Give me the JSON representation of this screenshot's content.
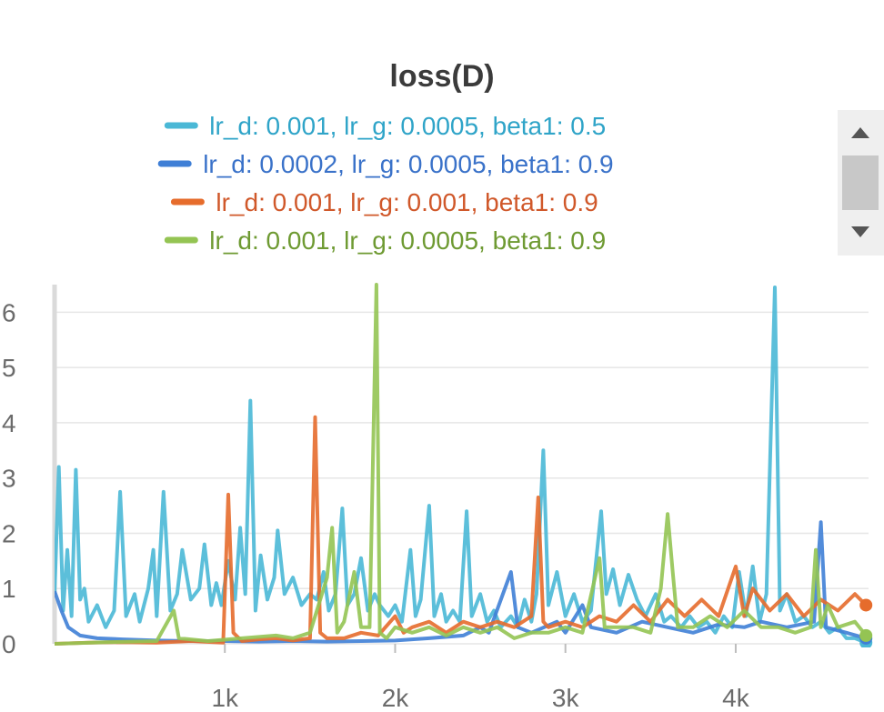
{
  "chart_data": {
    "type": "line",
    "title": "loss(D)",
    "xlabel": "",
    "ylabel": "",
    "xlim": [
      0,
      4780
    ],
    "ylim": [
      0,
      6.5
    ],
    "x_ticks": [
      {
        "value": 1000,
        "label": "1k"
      },
      {
        "value": 2000,
        "label": "2k"
      },
      {
        "value": 3000,
        "label": "3k"
      },
      {
        "value": 4000,
        "label": "4k"
      }
    ],
    "y_ticks": [
      {
        "value": 0,
        "label": "0"
      },
      {
        "value": 1,
        "label": "1"
      },
      {
        "value": 2,
        "label": "2"
      },
      {
        "value": 3,
        "label": "3"
      },
      {
        "value": 4,
        "label": "4"
      },
      {
        "value": 5,
        "label": "5"
      },
      {
        "value": 6,
        "label": "6"
      }
    ],
    "grid": true,
    "legend_position": "top",
    "series": [
      {
        "name": "lr_d: 0.001, lr_g: 0.0005, beta1: 0.5",
        "color": "#4ab8d6",
        "text_color": "#2fa4c8",
        "points": [
          [
            0,
            0.9
          ],
          [
            25,
            3.2
          ],
          [
            50,
            0.6
          ],
          [
            75,
            1.7
          ],
          [
            100,
            0.5
          ],
          [
            125,
            3.15
          ],
          [
            150,
            0.8
          ],
          [
            175,
            1.0
          ],
          [
            200,
            0.4
          ],
          [
            250,
            0.7
          ],
          [
            300,
            0.3
          ],
          [
            350,
            0.6
          ],
          [
            385,
            2.75
          ],
          [
            420,
            0.5
          ],
          [
            470,
            0.9
          ],
          [
            500,
            0.4
          ],
          [
            550,
            1.0
          ],
          [
            580,
            1.7
          ],
          [
            600,
            0.5
          ],
          [
            640,
            2.75
          ],
          [
            680,
            0.6
          ],
          [
            720,
            0.9
          ],
          [
            750,
            1.7
          ],
          [
            800,
            0.8
          ],
          [
            850,
            1.0
          ],
          [
            880,
            1.8
          ],
          [
            920,
            0.7
          ],
          [
            950,
            1.1
          ],
          [
            980,
            0.7
          ],
          [
            1020,
            1.5
          ],
          [
            1060,
            0.8
          ],
          [
            1090,
            2.1
          ],
          [
            1120,
            0.9
          ],
          [
            1150,
            4.4
          ],
          [
            1180,
            0.6
          ],
          [
            1210,
            1.6
          ],
          [
            1250,
            0.8
          ],
          [
            1290,
            1.2
          ],
          [
            1310,
            2.05
          ],
          [
            1350,
            0.9
          ],
          [
            1400,
            1.2
          ],
          [
            1450,
            0.7
          ],
          [
            1500,
            0.9
          ],
          [
            1540,
            0.8
          ],
          [
            1580,
            1.3
          ],
          [
            1610,
            0.6
          ],
          [
            1650,
            0.9
          ],
          [
            1690,
            2.45
          ],
          [
            1720,
            0.7
          ],
          [
            1760,
            0.9
          ],
          [
            1800,
            1.55
          ],
          [
            1840,
            0.6
          ],
          [
            1880,
            0.9
          ],
          [
            1910,
            0.7
          ],
          [
            1960,
            0.5
          ],
          [
            2000,
            0.7
          ],
          [
            2040,
            0.4
          ],
          [
            2090,
            1.7
          ],
          [
            2120,
            0.5
          ],
          [
            2150,
            0.8
          ],
          [
            2200,
            2.5
          ],
          [
            2230,
            0.5
          ],
          [
            2270,
            0.9
          ],
          [
            2300,
            0.4
          ],
          [
            2340,
            0.6
          ],
          [
            2380,
            0.4
          ],
          [
            2420,
            2.4
          ],
          [
            2450,
            0.5
          ],
          [
            2500,
            0.9
          ],
          [
            2540,
            0.4
          ],
          [
            2580,
            0.6
          ],
          [
            2620,
            0.3
          ],
          [
            2680,
            0.5
          ],
          [
            2720,
            0.3
          ],
          [
            2760,
            0.8
          ],
          [
            2800,
            0.4
          ],
          [
            2830,
            0.9
          ],
          [
            2870,
            3.5
          ],
          [
            2900,
            0.7
          ],
          [
            2950,
            1.3
          ],
          [
            3000,
            0.5
          ],
          [
            3050,
            0.9
          ],
          [
            3100,
            0.4
          ],
          [
            3150,
            0.6
          ],
          [
            3210,
            2.4
          ],
          [
            3240,
            0.9
          ],
          [
            3280,
            1.35
          ],
          [
            3320,
            0.7
          ],
          [
            3370,
            1.25
          ],
          [
            3420,
            0.8
          ],
          [
            3470,
            0.5
          ],
          [
            3530,
            0.9
          ],
          [
            3580,
            0.4
          ],
          [
            3620,
            0.5
          ],
          [
            3680,
            0.3
          ],
          [
            3730,
            0.5
          ],
          [
            3780,
            0.3
          ],
          [
            3830,
            0.4
          ],
          [
            3880,
            0.2
          ],
          [
            3930,
            0.5
          ],
          [
            3980,
            0.3
          ],
          [
            4020,
            1.3
          ],
          [
            4060,
            0.5
          ],
          [
            4100,
            1.4
          ],
          [
            4140,
            0.4
          ],
          [
            4180,
            0.9
          ],
          [
            4230,
            6.45
          ],
          [
            4260,
            0.6
          ],
          [
            4300,
            0.9
          ],
          [
            4350,
            0.4
          ],
          [
            4400,
            0.5
          ],
          [
            4450,
            0.3
          ],
          [
            4500,
            0.4
          ],
          [
            4550,
            0.2
          ],
          [
            4600,
            0.3
          ],
          [
            4650,
            0.1
          ],
          [
            4700,
            0.1
          ],
          [
            4765,
            0.02
          ]
        ]
      },
      {
        "name": "lr_d: 0.0002, lr_g: 0.0005, beta1: 0.9",
        "color": "#3f7fd6",
        "text_color": "#3a72c9",
        "points": [
          [
            0,
            0.95
          ],
          [
            40,
            0.6
          ],
          [
            80,
            0.3
          ],
          [
            150,
            0.15
          ],
          [
            250,
            0.1
          ],
          [
            400,
            0.08
          ],
          [
            600,
            0.06
          ],
          [
            800,
            0.05
          ],
          [
            1000,
            0.05
          ],
          [
            1200,
            0.04
          ],
          [
            1400,
            0.05
          ],
          [
            1600,
            0.04
          ],
          [
            1800,
            0.05
          ],
          [
            2000,
            0.06
          ],
          [
            2200,
            0.1
          ],
          [
            2400,
            0.15
          ],
          [
            2500,
            0.3
          ],
          [
            2550,
            0.2
          ],
          [
            2680,
            1.3
          ],
          [
            2720,
            0.3
          ],
          [
            2800,
            0.2
          ],
          [
            2950,
            0.4
          ],
          [
            3000,
            0.2
          ],
          [
            3100,
            0.7
          ],
          [
            3150,
            0.3
          ],
          [
            3300,
            0.2
          ],
          [
            3450,
            0.4
          ],
          [
            3600,
            0.3
          ],
          [
            3750,
            0.2
          ],
          [
            3900,
            0.35
          ],
          [
            4050,
            0.3
          ],
          [
            4150,
            0.4
          ],
          [
            4300,
            0.3
          ],
          [
            4460,
            0.4
          ],
          [
            4500,
            2.2
          ],
          [
            4530,
            0.3
          ],
          [
            4650,
            0.2
          ],
          [
            4765,
            0.1
          ]
        ]
      },
      {
        "name": "lr_d: 0.001, lr_g: 0.001, beta1: 0.9",
        "color": "#e66c2c",
        "text_color": "#d0582a",
        "points": [
          [
            0,
            0.0
          ],
          [
            200,
            0.02
          ],
          [
            400,
            0.03
          ],
          [
            600,
            0.02
          ],
          [
            800,
            0.05
          ],
          [
            990,
            0.02
          ],
          [
            1020,
            2.7
          ],
          [
            1050,
            0.2
          ],
          [
            1100,
            0.05
          ],
          [
            1200,
            0.08
          ],
          [
            1300,
            0.1
          ],
          [
            1400,
            0.06
          ],
          [
            1500,
            0.1
          ],
          [
            1530,
            4.1
          ],
          [
            1560,
            0.2
          ],
          [
            1600,
            0.1
          ],
          [
            1700,
            0.1
          ],
          [
            1800,
            0.2
          ],
          [
            1900,
            0.15
          ],
          [
            2000,
            0.5
          ],
          [
            2050,
            0.2
          ],
          [
            2100,
            0.3
          ],
          [
            2200,
            0.4
          ],
          [
            2300,
            0.2
          ],
          [
            2400,
            0.4
          ],
          [
            2500,
            0.3
          ],
          [
            2600,
            0.4
          ],
          [
            2700,
            0.3
          ],
          [
            2800,
            0.5
          ],
          [
            2840,
            2.65
          ],
          [
            2870,
            0.4
          ],
          [
            2900,
            0.3
          ],
          [
            3000,
            0.4
          ],
          [
            3100,
            0.3
          ],
          [
            3200,
            0.5
          ],
          [
            3300,
            0.4
          ],
          [
            3400,
            0.7
          ],
          [
            3500,
            0.4
          ],
          [
            3600,
            0.8
          ],
          [
            3700,
            0.5
          ],
          [
            3800,
            0.8
          ],
          [
            3900,
            0.5
          ],
          [
            4000,
            1.4
          ],
          [
            4050,
            0.5
          ],
          [
            4100,
            1.0
          ],
          [
            4200,
            0.6
          ],
          [
            4300,
            0.9
          ],
          [
            4400,
            0.5
          ],
          [
            4500,
            0.8
          ],
          [
            4600,
            0.6
          ],
          [
            4700,
            0.9
          ],
          [
            4765,
            0.7
          ]
        ]
      },
      {
        "name": "lr_d: 0.001, lr_g: 0.0005, beta1: 0.9",
        "color": "#94c453",
        "text_color": "#6e9a32",
        "points": [
          [
            0,
            0.0
          ],
          [
            300,
            0.03
          ],
          [
            600,
            0.05
          ],
          [
            700,
            0.6
          ],
          [
            730,
            0.1
          ],
          [
            900,
            0.05
          ],
          [
            1100,
            0.1
          ],
          [
            1300,
            0.15
          ],
          [
            1400,
            0.1
          ],
          [
            1500,
            0.2
          ],
          [
            1600,
            1.2
          ],
          [
            1630,
            2.1
          ],
          [
            1660,
            0.2
          ],
          [
            1700,
            0.4
          ],
          [
            1760,
            1.3
          ],
          [
            1800,
            0.3
          ],
          [
            1850,
            0.3
          ],
          [
            1890,
            6.5
          ],
          [
            1910,
            0.2
          ],
          [
            1950,
            0.1
          ],
          [
            2000,
            0.3
          ],
          [
            2100,
            0.2
          ],
          [
            2200,
            0.3
          ],
          [
            2300,
            0.15
          ],
          [
            2400,
            0.3
          ],
          [
            2500,
            0.2
          ],
          [
            2600,
            0.3
          ],
          [
            2700,
            0.1
          ],
          [
            2800,
            0.2
          ],
          [
            2900,
            0.2
          ],
          [
            3000,
            0.3
          ],
          [
            3100,
            0.2
          ],
          [
            3200,
            1.55
          ],
          [
            3230,
            0.3
          ],
          [
            3300,
            0.3
          ],
          [
            3400,
            0.3
          ],
          [
            3500,
            0.2
          ],
          [
            3560,
            1.0
          ],
          [
            3600,
            2.35
          ],
          [
            3630,
            1.3
          ],
          [
            3660,
            0.3
          ],
          [
            3750,
            0.3
          ],
          [
            3850,
            0.5
          ],
          [
            3950,
            0.3
          ],
          [
            4050,
            0.6
          ],
          [
            4150,
            0.3
          ],
          [
            4250,
            0.3
          ],
          [
            4350,
            0.2
          ],
          [
            4440,
            0.3
          ],
          [
            4470,
            1.7
          ],
          [
            4500,
            0.3
          ],
          [
            4540,
            0.7
          ],
          [
            4600,
            0.3
          ],
          [
            4700,
            0.4
          ],
          [
            4765,
            0.15
          ]
        ]
      }
    ]
  }
}
